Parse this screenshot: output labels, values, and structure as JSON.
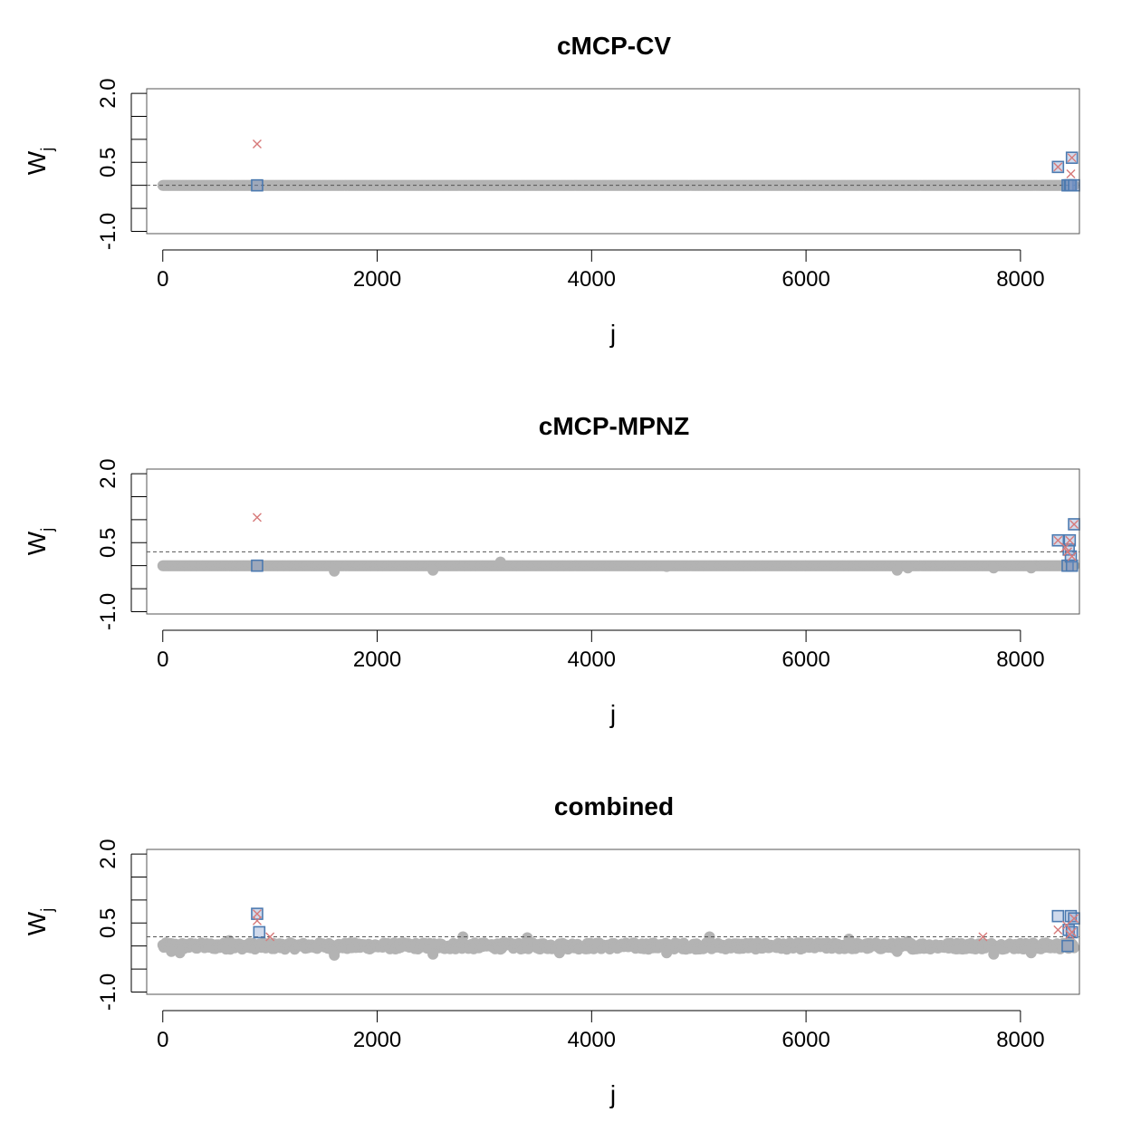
{
  "figure": {
    "panels": [
      {
        "title": "cMCP-CV",
        "ylabel": "W",
        "ylabel_sub": "j",
        "xlabel": "j",
        "threshold": 0.0,
        "chart_data": {
          "type": "scatter",
          "title": "cMCP-CV",
          "xlabel": "j",
          "ylabel": "W_j",
          "xlim": [
            -150,
            8550
          ],
          "ylim": [
            -1.05,
            2.1
          ],
          "xticks": [
            0,
            2000,
            4000,
            6000,
            8000
          ],
          "yticks_labeled": [
            -1.0,
            0.5,
            2.0
          ],
          "yticks_all": [
            -1.0,
            -0.5,
            0.0,
            0.5,
            1.0,
            1.5,
            2.0
          ],
          "threshold_line": 0.0,
          "grid": false,
          "background_points": {
            "description_x_range": [
              0,
              8500
            ],
            "y_mode": "flat",
            "y": 0.0,
            "scattered": []
          },
          "red_x": [
            [
              880,
              0.9
            ],
            [
              8350,
              0.4
            ],
            [
              8470,
              0.25
            ],
            [
              8480,
              0.6
            ]
          ],
          "blue_square": [
            [
              880,
              0.0
            ],
            [
              8350,
              0.4
            ],
            [
              8440,
              0.0
            ],
            [
              8460,
              0.0
            ],
            [
              8470,
              0.0
            ],
            [
              8480,
              0.6
            ],
            [
              8500,
              0.0
            ]
          ]
        }
      },
      {
        "title": "cMCP-MPNZ",
        "ylabel": "W",
        "ylabel_sub": "j",
        "xlabel": "j",
        "threshold": 0.3,
        "chart_data": {
          "type": "scatter",
          "title": "cMCP-MPNZ",
          "xlabel": "j",
          "ylabel": "W_j",
          "xlim": [
            -150,
            8550
          ],
          "ylim": [
            -1.05,
            2.1
          ],
          "xticks": [
            0,
            2000,
            4000,
            6000,
            8000
          ],
          "yticks_labeled": [
            -1.0,
            0.5,
            2.0
          ],
          "yticks_all": [
            -1.0,
            -0.5,
            0.0,
            0.5,
            1.0,
            1.5,
            2.0
          ],
          "threshold_line": 0.3,
          "grid": false,
          "background_points": {
            "y_mode": "flat",
            "y": 0.0,
            "scattered": [
              [
                1600,
                -0.12
              ],
              [
                2520,
                -0.1
              ],
              [
                3150,
                0.08
              ],
              [
                4700,
                -0.02
              ],
              [
                6850,
                -0.1
              ],
              [
                6950,
                -0.05
              ],
              [
                7750,
                -0.05
              ],
              [
                8100,
                -0.05
              ]
            ]
          },
          "red_x": [
            [
              880,
              1.05
            ],
            [
              8350,
              0.55
            ],
            [
              8420,
              0.4
            ],
            [
              8440,
              0.3
            ],
            [
              8460,
              0.55
            ],
            [
              8480,
              0.2
            ],
            [
              8500,
              0.9
            ]
          ],
          "blue_square": [
            [
              880,
              0.0
            ],
            [
              8350,
              0.55
            ],
            [
              8440,
              0.0
            ],
            [
              8450,
              0.35
            ],
            [
              8460,
              0.55
            ],
            [
              8470,
              0.2
            ],
            [
              8480,
              0.0
            ],
            [
              8500,
              0.9
            ]
          ]
        }
      },
      {
        "title": "combined",
        "ylabel": "W",
        "ylabel_sub": "j",
        "xlabel": "j",
        "threshold": 0.2,
        "chart_data": {
          "type": "scatter",
          "title": "combined",
          "xlabel": "j",
          "ylabel": "W_j",
          "xlim": [
            -150,
            8550
          ],
          "ylim": [
            -1.05,
            2.1
          ],
          "xticks": [
            0,
            2000,
            4000,
            6000,
            8000
          ],
          "yticks_labeled": [
            -1.0,
            0.5,
            2.0
          ],
          "yticks_all": [
            -1.0,
            -0.5,
            0.0,
            0.5,
            1.0,
            1.5,
            2.0
          ],
          "threshold_line": 0.2,
          "grid": false,
          "background_points": {
            "y_mode": "noisy",
            "y": 0.0,
            "scattered": [
              [
                80,
                -0.12
              ],
              [
                160,
                -0.15
              ],
              [
                620,
                0.12
              ],
              [
                1600,
                -0.2
              ],
              [
                2520,
                -0.18
              ],
              [
                2800,
                0.2
              ],
              [
                3400,
                0.18
              ],
              [
                3700,
                -0.15
              ],
              [
                4700,
                -0.15
              ],
              [
                5100,
                0.2
              ],
              [
                6400,
                0.15
              ],
              [
                6850,
                -0.12
              ],
              [
                6950,
                0.1
              ],
              [
                7750,
                -0.18
              ],
              [
                8100,
                -0.15
              ]
            ]
          },
          "red_x": [
            [
              880,
              0.7
            ],
            [
              880,
              0.55
            ],
            [
              1000,
              0.2
            ],
            [
              7650,
              0.2
            ],
            [
              8350,
              0.35
            ],
            [
              8430,
              0.45
            ],
            [
              8460,
              0.25
            ],
            [
              8480,
              0.3
            ],
            [
              8500,
              0.6
            ]
          ],
          "blue_square": [
            [
              880,
              0.7
            ],
            [
              900,
              0.3
            ],
            [
              8350,
              0.65
            ],
            [
              8440,
              0.0
            ],
            [
              8450,
              0.35
            ],
            [
              8470,
              0.65
            ],
            [
              8480,
              0.3
            ],
            [
              8500,
              0.6
            ]
          ]
        }
      }
    ]
  }
}
